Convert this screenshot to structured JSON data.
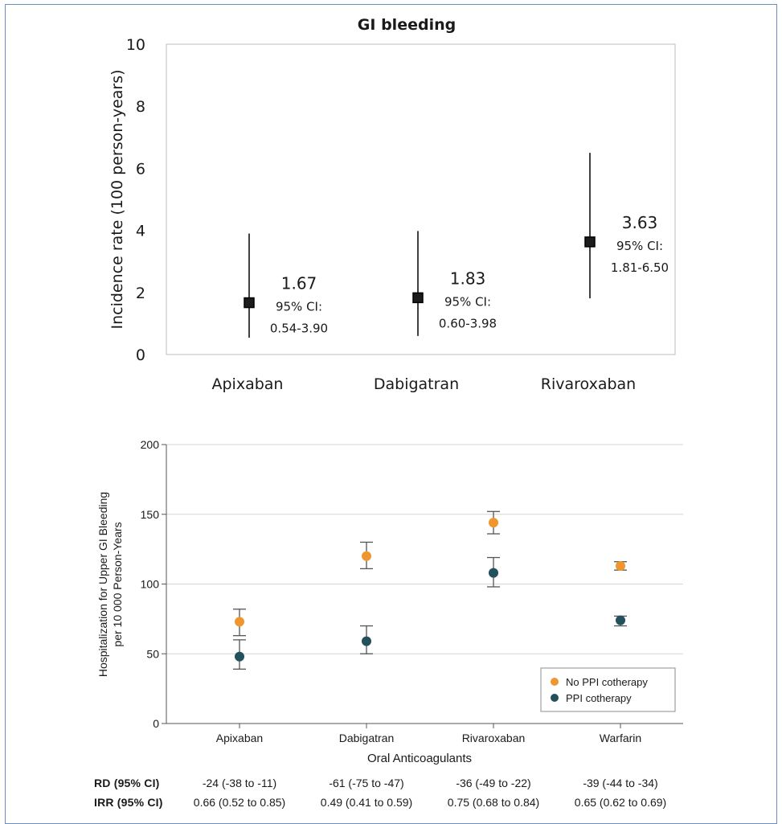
{
  "chart_data": [
    {
      "type": "scatter",
      "title": "GI bleeding",
      "ylabel": "Incidence rate (100 person-years)",
      "ylim": [
        0,
        10
      ],
      "yticks": [
        0,
        2,
        4,
        6,
        8,
        10
      ],
      "categories": [
        "Apixaban",
        "Dabigatran",
        "Rivaroxaban"
      ],
      "values": [
        1.67,
        1.83,
        3.63
      ],
      "ci_low": [
        0.54,
        0.6,
        1.81
      ],
      "ci_high": [
        3.9,
        3.98,
        6.5
      ],
      "value_labels": [
        "1.67",
        "1.83",
        "3.63"
      ],
      "ci_caption": "95% CI:",
      "ci_labels": [
        "0.54-3.90",
        "0.60-3.98",
        "1.81-6.50"
      ],
      "marker_color": "#000000",
      "marker_fill": "#1c1c1c"
    },
    {
      "type": "scatter",
      "xlabel": "Oral Anticoagulants",
      "ylabel_line1": "Hospitalization for Upper GI Bleeding",
      "ylabel_line2": "per 10 000 Person-Years",
      "ylim": [
        0,
        200
      ],
      "yticks": [
        0,
        50,
        100,
        150,
        200
      ],
      "grid": true,
      "categories": [
        "Apixaban",
        "Dabigatran",
        "Rivaroxaban",
        "Warfarin"
      ],
      "series": [
        {
          "name": "No PPI cotherapy",
          "color": "#f0962e",
          "values": [
            73,
            120,
            144,
            113
          ],
          "low": [
            63,
            111,
            136,
            110
          ],
          "high": [
            82,
            130,
            152,
            116
          ]
        },
        {
          "name": "PPI cotherapy",
          "color": "#244f5d",
          "values": [
            48,
            59,
            108,
            74
          ],
          "low": [
            39,
            50,
            98,
            70
          ],
          "high": [
            60,
            70,
            119,
            77
          ]
        }
      ],
      "legend_position": "bottom-right"
    }
  ],
  "footer": {
    "rd_label": "RD (95% CI)",
    "irr_label": "IRR (95% CI)",
    "rd_values": [
      "-24 (-38 to -11)",
      "-61 (-75 to -47)",
      "-36 (-49 to -22)",
      "-39 (-44 to -34)"
    ],
    "irr_values": [
      "0.66 (0.52 to 0.85)",
      "0.49 (0.41 to 0.59)",
      "0.75 (0.68 to 0.84)",
      "0.65 (0.62 to 0.69)"
    ]
  }
}
